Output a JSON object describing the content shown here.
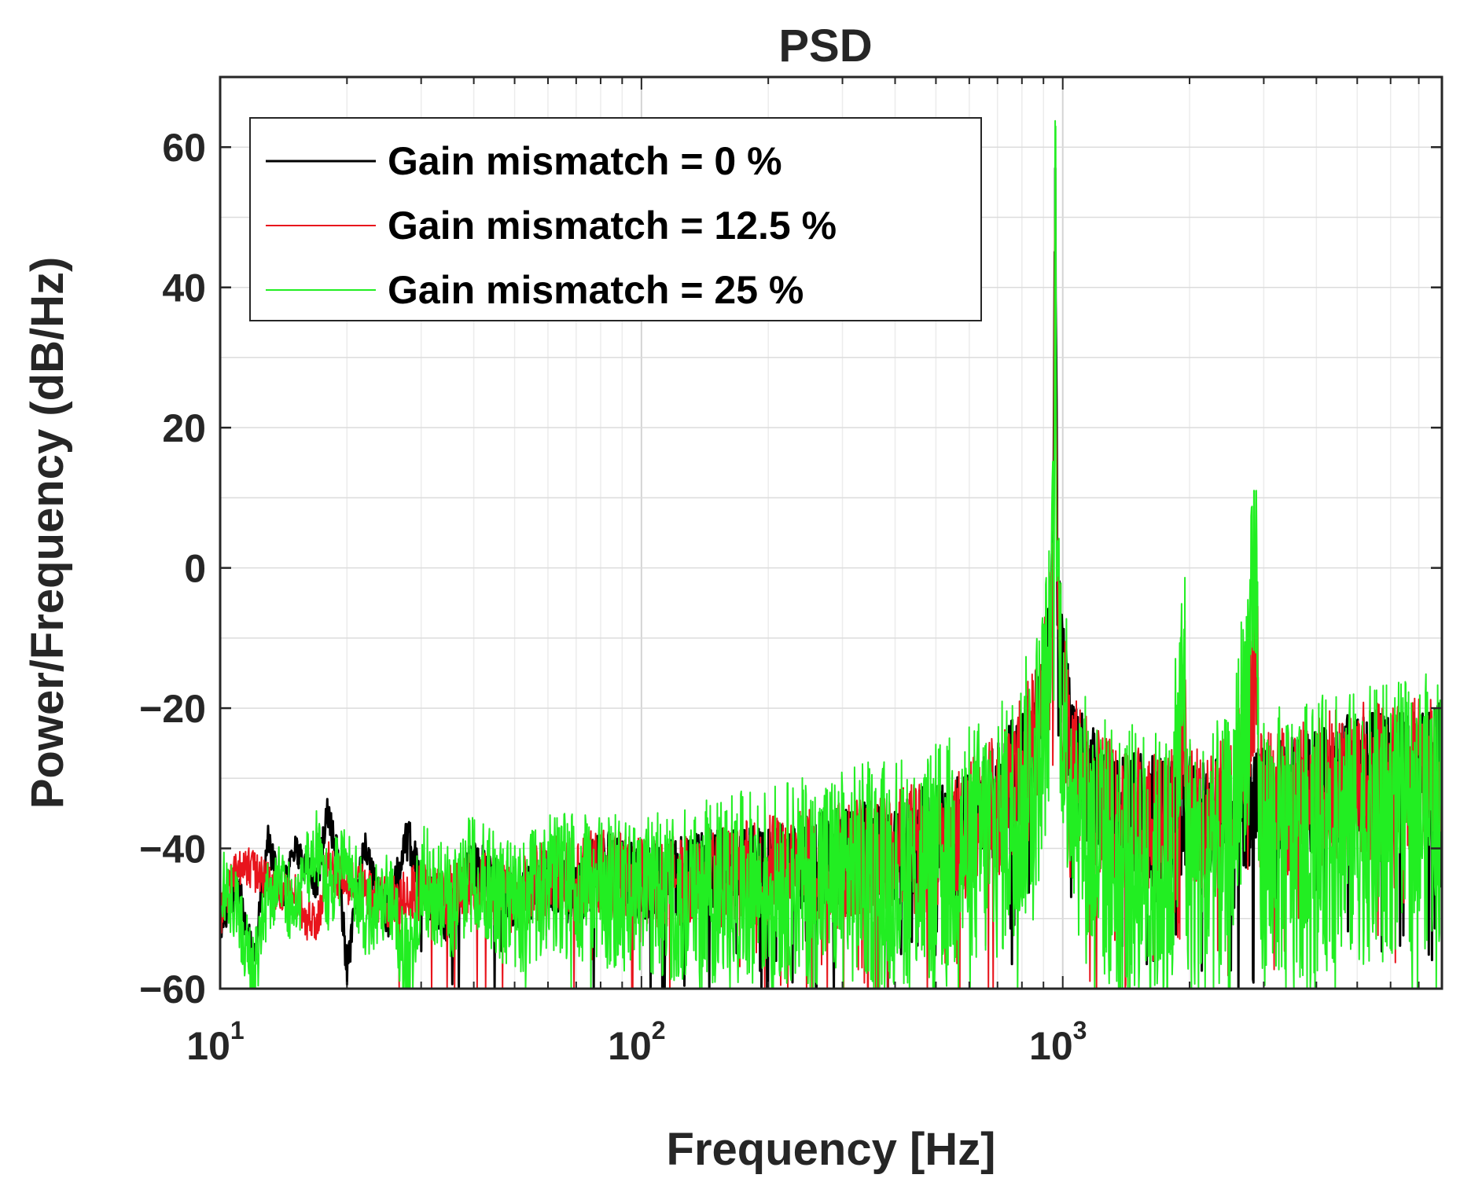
{
  "chart_data": {
    "type": "line",
    "title": "PSD",
    "xlabel": "Frequency [Hz]",
    "ylabel": "Power/Frequency (dB/Hz)",
    "x_scale": "log",
    "xlim": [
      10,
      7943
    ],
    "ylim": [
      -60,
      70
    ],
    "grid": true,
    "legend_position": "top-left",
    "x_ticks": [
      {
        "value": 10,
        "base": "10",
        "exp": "1"
      },
      {
        "value": 100,
        "base": "10",
        "exp": "2"
      },
      {
        "value": 1000,
        "base": "10",
        "exp": "3"
      }
    ],
    "y_ticks": [
      {
        "value": 60,
        "label": "60"
      },
      {
        "value": 40,
        "label": "40"
      },
      {
        "value": 20,
        "label": "20"
      },
      {
        "value": 0,
        "label": "0"
      },
      {
        "value": -20,
        "label": "−20"
      },
      {
        "value": -40,
        "label": "−40"
      },
      {
        "value": -60,
        "label": "−60"
      }
    ],
    "series": [
      {
        "name": "Gain mismatch = 0 %",
        "color": "#000000",
        "noise_spread": 4,
        "points": [
          [
            10,
            -51
          ],
          [
            11,
            -45
          ],
          [
            12,
            -56
          ],
          [
            13,
            -39
          ],
          [
            14,
            -47
          ],
          [
            15,
            -40
          ],
          [
            17,
            -45
          ],
          [
            18,
            -35
          ],
          [
            19,
            -41
          ],
          [
            20,
            -57
          ],
          [
            22,
            -40
          ],
          [
            25,
            -50
          ],
          [
            28,
            -38
          ],
          [
            30,
            -46
          ],
          [
            35,
            -50
          ],
          [
            40,
            -42
          ],
          [
            50,
            -48
          ],
          [
            60,
            -44
          ],
          [
            70,
            -47
          ],
          [
            80,
            -42
          ],
          [
            100,
            -45
          ],
          [
            150,
            -43
          ],
          [
            200,
            -43
          ],
          [
            300,
            -41
          ],
          [
            400,
            -40
          ],
          [
            500,
            -38
          ],
          [
            600,
            -36
          ],
          [
            700,
            -33
          ],
          [
            800,
            -28
          ],
          [
            880,
            -21
          ],
          [
            930,
            -12
          ],
          [
            950,
            0
          ],
          [
            960,
            57
          ],
          [
            970,
            0
          ],
          [
            990,
            -14
          ],
          [
            1050,
            -25
          ],
          [
            1150,
            -31
          ],
          [
            1300,
            -34
          ],
          [
            1500,
            -35
          ],
          [
            1800,
            -36
          ],
          [
            1950,
            -35
          ],
          [
            2200,
            -35
          ],
          [
            2500,
            -35
          ],
          [
            2900,
            -34
          ],
          [
            3500,
            -33
          ],
          [
            4000,
            -32
          ],
          [
            5000,
            -29
          ],
          [
            6000,
            -29
          ],
          [
            7000,
            -29
          ],
          [
            7943,
            -28
          ]
        ]
      },
      {
        "name": "Gain mismatch = 12.5 %",
        "color": "#e8141c",
        "noise_spread": 5,
        "points": [
          [
            10,
            -50
          ],
          [
            11,
            -42
          ],
          [
            12,
            -43
          ],
          [
            13,
            -45
          ],
          [
            14,
            -47
          ],
          [
            15,
            -46
          ],
          [
            16,
            -50
          ],
          [
            17,
            -51
          ],
          [
            18,
            -42
          ],
          [
            19,
            -44
          ],
          [
            22,
            -46
          ],
          [
            25,
            -48
          ],
          [
            30,
            -46
          ],
          [
            35,
            -47
          ],
          [
            40,
            -45
          ],
          [
            50,
            -47
          ],
          [
            60,
            -44
          ],
          [
            80,
            -43
          ],
          [
            100,
            -45
          ],
          [
            150,
            -44
          ],
          [
            200,
            -43
          ],
          [
            300,
            -42
          ],
          [
            400,
            -41
          ],
          [
            500,
            -39
          ],
          [
            600,
            -37
          ],
          [
            700,
            -34
          ],
          [
            800,
            -29
          ],
          [
            880,
            -22
          ],
          [
            930,
            -13
          ],
          [
            950,
            0
          ],
          [
            960,
            56
          ],
          [
            970,
            0
          ],
          [
            990,
            -15
          ],
          [
            1050,
            -26
          ],
          [
            1150,
            -32
          ],
          [
            1300,
            -35
          ],
          [
            1500,
            -36
          ],
          [
            1800,
            -37
          ],
          [
            1950,
            -18
          ],
          [
            1965,
            -36
          ],
          [
            2200,
            -36
          ],
          [
            2500,
            -35
          ],
          [
            2900,
            -13
          ],
          [
            2915,
            -34
          ],
          [
            3500,
            -33
          ],
          [
            4000,
            -32
          ],
          [
            5000,
            -30
          ],
          [
            6000,
            -30
          ],
          [
            7000,
            -29
          ],
          [
            7943,
            -28
          ]
        ]
      },
      {
        "name": "Gain mismatch = 25 %",
        "color": "#22ee22",
        "noise_spread": 9,
        "points": [
          [
            10,
            -45
          ],
          [
            11,
            -49
          ],
          [
            12,
            -58
          ],
          [
            13,
            -47
          ],
          [
            14,
            -44
          ],
          [
            15,
            -50
          ],
          [
            16,
            -43
          ],
          [
            17,
            -40
          ],
          [
            18,
            -46
          ],
          [
            20,
            -42
          ],
          [
            22,
            -49
          ],
          [
            25,
            -47
          ],
          [
            28,
            -58
          ],
          [
            30,
            -44
          ],
          [
            35,
            -48
          ],
          [
            40,
            -43
          ],
          [
            50,
            -49
          ],
          [
            60,
            -45
          ],
          [
            80,
            -46
          ],
          [
            100,
            -47
          ],
          [
            150,
            -46
          ],
          [
            200,
            -45
          ],
          [
            300,
            -44
          ],
          [
            400,
            -43
          ],
          [
            500,
            -42
          ],
          [
            600,
            -40
          ],
          [
            700,
            -38
          ],
          [
            800,
            -33
          ],
          [
            880,
            -26
          ],
          [
            930,
            -15
          ],
          [
            950,
            0
          ],
          [
            960,
            57
          ],
          [
            970,
            0
          ],
          [
            990,
            -16
          ],
          [
            1050,
            -30
          ],
          [
            1150,
            -38
          ],
          [
            1300,
            -41
          ],
          [
            1500,
            -42
          ],
          [
            1800,
            -43
          ],
          [
            1950,
            -14
          ],
          [
            1965,
            -42
          ],
          [
            2200,
            -42
          ],
          [
            2500,
            -41
          ],
          [
            2900,
            -2
          ],
          [
            2915,
            -40
          ],
          [
            3500,
            -39
          ],
          [
            4000,
            -38
          ],
          [
            5000,
            -37
          ],
          [
            6000,
            -36
          ],
          [
            7000,
            -35
          ],
          [
            7943,
            -34
          ]
        ]
      }
    ]
  }
}
